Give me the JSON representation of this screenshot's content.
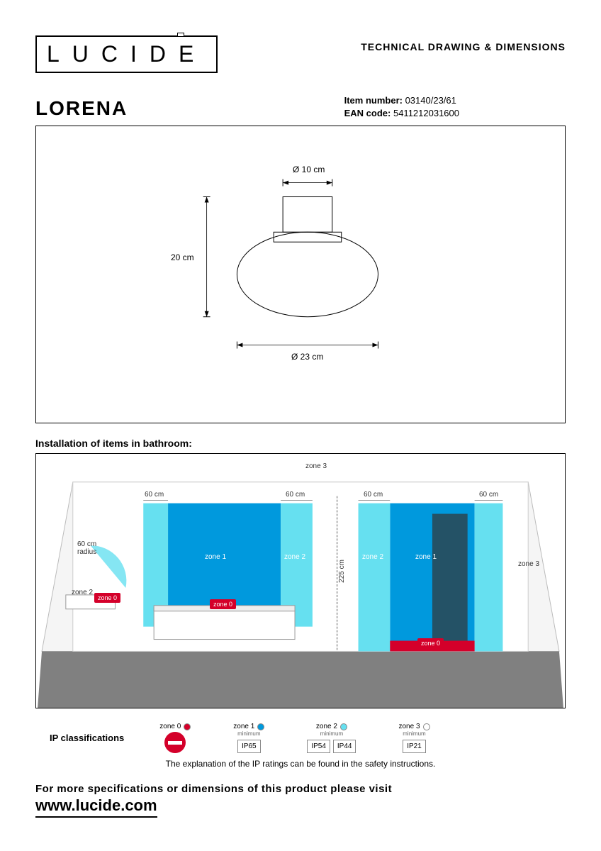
{
  "header": {
    "logo_text": "LUCIDE",
    "doc_title": "TECHNICAL DRAWING & DIMENSIONS"
  },
  "product": {
    "name": "LORENA",
    "item_label": "Item number:",
    "item_value": "03140/23/61",
    "ean_label": "EAN code:",
    "ean_value": "5411212031600"
  },
  "drawing": {
    "top_dim": "Ø 10 cm",
    "height_dim": "20 cm",
    "bottom_dim": "Ø 23 cm",
    "line_color": "#000000"
  },
  "installation": {
    "title": "Installation of items in bathroom:",
    "zone3": "zone 3",
    "zone2": "zone 2",
    "zone1": "zone 1",
    "zone0": "zone 0",
    "dim60": "60 cm",
    "dim225": "225 cm",
    "radius_label": "60 cm\nradius",
    "color_zone1": "#0099dd",
    "color_zone2": "#66e0f0",
    "color_zone0": "#d4002a",
    "color_floor": "#808080",
    "color_wall": "#f5f5f5"
  },
  "ip": {
    "label": "IP classifications",
    "zones": [
      {
        "name": "zone 0",
        "sub": "",
        "swatch": "#d4002a",
        "type": "noentry"
      },
      {
        "name": "zone 1",
        "sub": "minimum",
        "swatch": "#0099dd",
        "boxes": [
          "IP65"
        ]
      },
      {
        "name": "zone 2",
        "sub": "minimum",
        "swatch": "#66e0f0",
        "boxes": [
          "IP54",
          "IP44"
        ]
      },
      {
        "name": "zone 3",
        "sub": "minimum",
        "swatch": "#ffffff",
        "boxes": [
          "IP21"
        ]
      }
    ],
    "explanation": "The explanation of the IP ratings can be found in the safety instructions."
  },
  "footer": {
    "line1": "For more specifications or dimensions of this product please visit",
    "url": "www.lucide.com"
  }
}
